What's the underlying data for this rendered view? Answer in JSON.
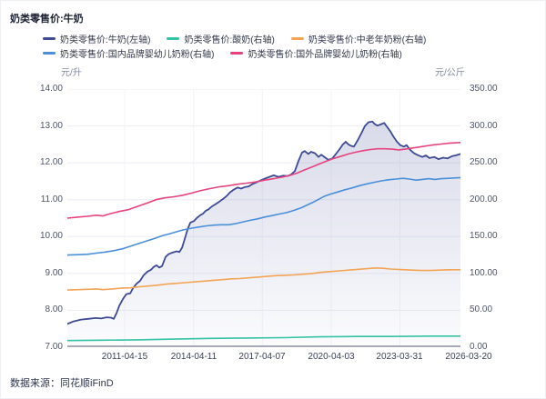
{
  "title": "奶类零售价:牛奶",
  "axes": {
    "left_unit": "元/升",
    "right_unit": "元/公斤",
    "left_ticks": [
      "14.00",
      "13.00",
      "12.00",
      "11.00",
      "10.00",
      "9.00",
      "8.00",
      "7.00"
    ],
    "right_ticks": [
      "350.00",
      "300.00",
      "250.00",
      "200.00",
      "150.00",
      "100.00",
      "50.00",
      "0.00"
    ],
    "x_ticks": [
      "2011-04-15",
      "2014-04-11",
      "2017-04-07",
      "2020-04-03",
      "2023-03-31",
      "2026-03-20"
    ]
  },
  "footer": {
    "text": "数据来源：同花顺iFinD"
  },
  "chart_data": {
    "type": "line",
    "title": "奶类零售价:牛奶",
    "grid": true,
    "legend_position": "top",
    "x_tick_labels": [
      "2011-04-15",
      "2014-04-11",
      "2017-04-07",
      "2020-04-03",
      "2023-03-31",
      "2026-03-20"
    ],
    "x_tick_fractions": [
      0.146,
      0.321,
      0.496,
      0.671,
      0.846,
      1.021
    ],
    "left_axis": {
      "label": "元/升",
      "range": [
        7,
        14
      ]
    },
    "right_axis": {
      "label": "元/公斤",
      "range": [
        0,
        350
      ]
    },
    "series": [
      {
        "name": "奶类零售价:牛奶(左轴)",
        "axis": "left",
        "color": "#3E4A94",
        "width": 1.8,
        "area": true,
        "points": [
          [
            0.0,
            7.63
          ],
          [
            0.016,
            7.7
          ],
          [
            0.035,
            7.75
          ],
          [
            0.053,
            7.77
          ],
          [
            0.072,
            7.79
          ],
          [
            0.086,
            7.78
          ],
          [
            0.1,
            7.81
          ],
          [
            0.111,
            7.8
          ],
          [
            0.118,
            7.77
          ],
          [
            0.125,
            7.92
          ],
          [
            0.132,
            8.12
          ],
          [
            0.141,
            8.3
          ],
          [
            0.15,
            8.44
          ],
          [
            0.16,
            8.46
          ],
          [
            0.167,
            8.6
          ],
          [
            0.176,
            8.72
          ],
          [
            0.185,
            8.8
          ],
          [
            0.194,
            8.95
          ],
          [
            0.204,
            9.05
          ],
          [
            0.213,
            9.1
          ],
          [
            0.22,
            9.18
          ],
          [
            0.227,
            9.22
          ],
          [
            0.234,
            9.16
          ],
          [
            0.241,
            9.2
          ],
          [
            0.25,
            9.45
          ],
          [
            0.257,
            9.52
          ],
          [
            0.266,
            9.56
          ],
          [
            0.278,
            9.6
          ],
          [
            0.285,
            9.58
          ],
          [
            0.292,
            9.7
          ],
          [
            0.299,
            9.95
          ],
          [
            0.306,
            10.2
          ],
          [
            0.313,
            10.38
          ],
          [
            0.322,
            10.42
          ],
          [
            0.329,
            10.5
          ],
          [
            0.338,
            10.58
          ],
          [
            0.345,
            10.62
          ],
          [
            0.352,
            10.7
          ],
          [
            0.359,
            10.74
          ],
          [
            0.368,
            10.82
          ],
          [
            0.377,
            10.88
          ],
          [
            0.387,
            10.95
          ],
          [
            0.396,
            11.02
          ],
          [
            0.405,
            11.1
          ],
          [
            0.414,
            11.2
          ],
          [
            0.424,
            11.28
          ],
          [
            0.433,
            11.33
          ],
          [
            0.442,
            11.3
          ],
          [
            0.451,
            11.34
          ],
          [
            0.461,
            11.36
          ],
          [
            0.47,
            11.42
          ],
          [
            0.479,
            11.46
          ],
          [
            0.491,
            11.52
          ],
          [
            0.502,
            11.57
          ],
          [
            0.514,
            11.62
          ],
          [
            0.525,
            11.66
          ],
          [
            0.537,
            11.62
          ],
          [
            0.549,
            11.65
          ],
          [
            0.56,
            11.64
          ],
          [
            0.569,
            11.68
          ],
          [
            0.579,
            11.78
          ],
          [
            0.588,
            12.05
          ],
          [
            0.597,
            12.28
          ],
          [
            0.604,
            12.32
          ],
          [
            0.613,
            12.24
          ],
          [
            0.62,
            12.3
          ],
          [
            0.63,
            12.26
          ],
          [
            0.639,
            12.16
          ],
          [
            0.646,
            12.22
          ],
          [
            0.655,
            12.15
          ],
          [
            0.664,
            12.08
          ],
          [
            0.674,
            12.12
          ],
          [
            0.683,
            12.24
          ],
          [
            0.692,
            12.36
          ],
          [
            0.701,
            12.5
          ],
          [
            0.708,
            12.57
          ],
          [
            0.715,
            12.5
          ],
          [
            0.722,
            12.46
          ],
          [
            0.729,
            12.44
          ],
          [
            0.738,
            12.6
          ],
          [
            0.748,
            12.8
          ],
          [
            0.757,
            13.0
          ],
          [
            0.766,
            13.1
          ],
          [
            0.776,
            13.12
          ],
          [
            0.782,
            13.05
          ],
          [
            0.789,
            13.01
          ],
          [
            0.799,
            13.05
          ],
          [
            0.806,
            13.08
          ],
          [
            0.813,
            12.98
          ],
          [
            0.822,
            12.85
          ],
          [
            0.829,
            12.72
          ],
          [
            0.838,
            12.58
          ],
          [
            0.847,
            12.48
          ],
          [
            0.856,
            12.44
          ],
          [
            0.863,
            12.48
          ],
          [
            0.873,
            12.34
          ],
          [
            0.882,
            12.26
          ],
          [
            0.891,
            12.21
          ],
          [
            0.903,
            12.16
          ],
          [
            0.912,
            12.2
          ],
          [
            0.921,
            12.13
          ],
          [
            0.933,
            12.16
          ],
          [
            0.944,
            12.1
          ],
          [
            0.956,
            12.14
          ],
          [
            0.967,
            12.12
          ],
          [
            0.979,
            12.18
          ],
          [
            0.988,
            12.2
          ],
          [
            1.0,
            12.24
          ]
        ]
      },
      {
        "name": "奶类零售价:酸奶(右轴)",
        "axis": "right",
        "color": "#33C3A5",
        "width": 1.6,
        "area": false,
        "points": [
          [
            0.0,
            9
          ],
          [
            0.086,
            9.5
          ],
          [
            0.178,
            10
          ],
          [
            0.271,
            11
          ],
          [
            0.363,
            12
          ],
          [
            0.456,
            12.5
          ],
          [
            0.549,
            13
          ],
          [
            0.641,
            14
          ],
          [
            0.734,
            14.5
          ],
          [
            0.826,
            14.5
          ],
          [
            0.919,
            15
          ],
          [
            1.0,
            15
          ]
        ]
      },
      {
        "name": "奶类零售价:中老年奶粉(右轴)",
        "axis": "right",
        "color": "#F3A455",
        "width": 1.6,
        "area": false,
        "points": [
          [
            0.0,
            77.5
          ],
          [
            0.028,
            78
          ],
          [
            0.051,
            78.5
          ],
          [
            0.074,
            79
          ],
          [
            0.09,
            78
          ],
          [
            0.113,
            79
          ],
          [
            0.137,
            80
          ],
          [
            0.16,
            80.5
          ],
          [
            0.183,
            82
          ],
          [
            0.206,
            83
          ],
          [
            0.229,
            84
          ],
          [
            0.252,
            85.5
          ],
          [
            0.275,
            86.5
          ],
          [
            0.299,
            87.5
          ],
          [
            0.322,
            88.5
          ],
          [
            0.345,
            89.5
          ],
          [
            0.368,
            90.5
          ],
          [
            0.391,
            91.5
          ],
          [
            0.414,
            92.5
          ],
          [
            0.438,
            93
          ],
          [
            0.461,
            94
          ],
          [
            0.484,
            95
          ],
          [
            0.507,
            96
          ],
          [
            0.53,
            97
          ],
          [
            0.553,
            97.5
          ],
          [
            0.576,
            98
          ],
          [
            0.6,
            99
          ],
          [
            0.623,
            100
          ],
          [
            0.646,
            101.5
          ],
          [
            0.669,
            102.5
          ],
          [
            0.692,
            103.5
          ],
          [
            0.715,
            104.5
          ],
          [
            0.738,
            105.5
          ],
          [
            0.762,
            106.5
          ],
          [
            0.785,
            107.5
          ],
          [
            0.803,
            107
          ],
          [
            0.822,
            106
          ],
          [
            0.84,
            105.5
          ],
          [
            0.859,
            105
          ],
          [
            0.877,
            104.5
          ],
          [
            0.9,
            104
          ],
          [
            0.924,
            104
          ],
          [
            0.947,
            104.5
          ],
          [
            0.97,
            105
          ],
          [
            1.0,
            105
          ]
        ]
      },
      {
        "name": "奶类零售价:国内品牌婴幼儿奶粉(右轴)",
        "axis": "right",
        "color": "#4A8FD8",
        "width": 1.6,
        "area": false,
        "points": [
          [
            0.0,
            125
          ],
          [
            0.028,
            125.5
          ],
          [
            0.051,
            126
          ],
          [
            0.074,
            127.5
          ],
          [
            0.097,
            129
          ],
          [
            0.12,
            131
          ],
          [
            0.144,
            134
          ],
          [
            0.167,
            138
          ],
          [
            0.19,
            142
          ],
          [
            0.208,
            145
          ],
          [
            0.225,
            148
          ],
          [
            0.243,
            151.5
          ],
          [
            0.259,
            153.5
          ],
          [
            0.278,
            156.5
          ],
          [
            0.294,
            159
          ],
          [
            0.317,
            161.5
          ],
          [
            0.336,
            163
          ],
          [
            0.354,
            164.5
          ],
          [
            0.373,
            165.5
          ],
          [
            0.391,
            166
          ],
          [
            0.41,
            166
          ],
          [
            0.428,
            167.5
          ],
          [
            0.447,
            170
          ],
          [
            0.465,
            172
          ],
          [
            0.484,
            174
          ],
          [
            0.502,
            176.5
          ],
          [
            0.521,
            178.5
          ],
          [
            0.539,
            180.5
          ],
          [
            0.558,
            182.5
          ],
          [
            0.576,
            185.5
          ],
          [
            0.595,
            189
          ],
          [
            0.611,
            193
          ],
          [
            0.627,
            197
          ],
          [
            0.641,
            201
          ],
          [
            0.655,
            205
          ],
          [
            0.669,
            207.5
          ],
          [
            0.688,
            210.5
          ],
          [
            0.706,
            213.5
          ],
          [
            0.725,
            216
          ],
          [
            0.743,
            219
          ],
          [
            0.762,
            221.5
          ],
          [
            0.78,
            223.5
          ],
          [
            0.799,
            225.5
          ],
          [
            0.817,
            227
          ],
          [
            0.836,
            228
          ],
          [
            0.854,
            229
          ],
          [
            0.87,
            228
          ],
          [
            0.887,
            226.5
          ],
          [
            0.903,
            227.5
          ],
          [
            0.919,
            228.5
          ],
          [
            0.935,
            227.5
          ],
          [
            0.951,
            228.5
          ],
          [
            0.97,
            229
          ],
          [
            1.0,
            230
          ]
        ]
      },
      {
        "name": "奶类零售价:国外品牌婴幼儿奶粉(右轴)",
        "axis": "right",
        "color": "#E5437F",
        "width": 1.6,
        "area": false,
        "points": [
          [
            0.0,
            175
          ],
          [
            0.028,
            176.5
          ],
          [
            0.051,
            177.5
          ],
          [
            0.074,
            179
          ],
          [
            0.09,
            178
          ],
          [
            0.109,
            181
          ],
          [
            0.132,
            184
          ],
          [
            0.155,
            186.5
          ],
          [
            0.174,
            190
          ],
          [
            0.19,
            193
          ],
          [
            0.208,
            196.5
          ],
          [
            0.225,
            200
          ],
          [
            0.248,
            202.5
          ],
          [
            0.271,
            204
          ],
          [
            0.294,
            206
          ],
          [
            0.317,
            209
          ],
          [
            0.34,
            212.5
          ],
          [
            0.363,
            215
          ],
          [
            0.387,
            217.5
          ],
          [
            0.41,
            219
          ],
          [
            0.433,
            221
          ],
          [
            0.456,
            222.5
          ],
          [
            0.479,
            224
          ],
          [
            0.502,
            226.5
          ],
          [
            0.525,
            228.5
          ],
          [
            0.549,
            231
          ],
          [
            0.567,
            233
          ],
          [
            0.586,
            236.5
          ],
          [
            0.604,
            240.5
          ],
          [
            0.623,
            244.5
          ],
          [
            0.641,
            248.5
          ],
          [
            0.66,
            252.5
          ],
          [
            0.678,
            256
          ],
          [
            0.697,
            259
          ],
          [
            0.715,
            262
          ],
          [
            0.734,
            264.5
          ],
          [
            0.752,
            266.5
          ],
          [
            0.771,
            268
          ],
          [
            0.789,
            269
          ],
          [
            0.808,
            269
          ],
          [
            0.826,
            268.5
          ],
          [
            0.843,
            267.5
          ],
          [
            0.859,
            268.5
          ],
          [
            0.877,
            270
          ],
          [
            0.896,
            271.5
          ],
          [
            0.914,
            273
          ],
          [
            0.933,
            274.5
          ],
          [
            0.951,
            275.5
          ],
          [
            0.97,
            276.5
          ],
          [
            1.0,
            277.5
          ]
        ]
      }
    ]
  }
}
